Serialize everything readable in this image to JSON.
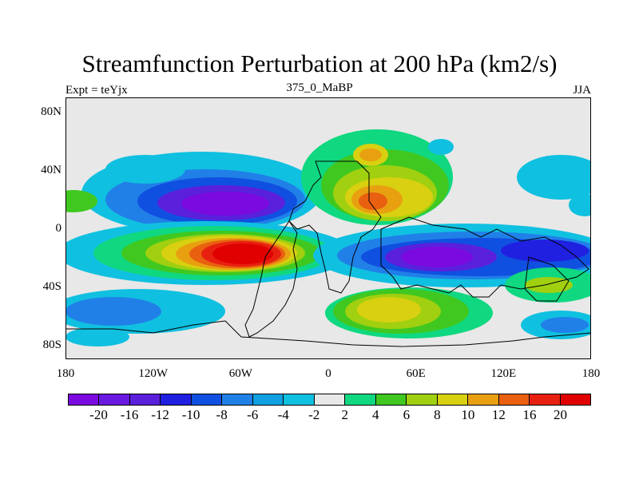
{
  "title": "Streamfunction Perturbation at 200 hPa (km2/s)",
  "subtitle_left": "Expt = teYjx",
  "subtitle_center": "375_0_MaBP",
  "subtitle_right": "JJA",
  "axes": {
    "y_ticks": [
      {
        "label": "80N",
        "lat": 80
      },
      {
        "label": "40N",
        "lat": 40
      },
      {
        "label": "0",
        "lat": 0
      },
      {
        "label": "40S",
        "lat": -40
      },
      {
        "label": "80S",
        "lat": -80
      }
    ],
    "x_ticks": [
      {
        "label": "180",
        "lon": -180
      },
      {
        "label": "120W",
        "lon": -120
      },
      {
        "label": "60W",
        "lon": -60
      },
      {
        "label": "0",
        "lon": 0
      },
      {
        "label": "60E",
        "lon": 60
      },
      {
        "label": "120E",
        "lon": 120
      },
      {
        "label": "180",
        "lon": 180
      }
    ],
    "lon_range": [
      -180,
      180
    ],
    "lat_range": [
      -90,
      90
    ]
  },
  "colorbar": {
    "levels": [
      "-20",
      "-16",
      "-12",
      "-10",
      "-8",
      "-6",
      "-4",
      "-2",
      "2",
      "4",
      "6",
      "8",
      "10",
      "12",
      "16",
      "20"
    ],
    "colors": [
      "#7a0ae0",
      "#6a1ae0",
      "#5a20dc",
      "#2020e0",
      "#1050e0",
      "#2080e8",
      "#10a0e0",
      "#10c0e0",
      "#e8e8e8",
      "#10d880",
      "#40c820",
      "#a0d010",
      "#d8d010",
      "#e8a010",
      "#e86010",
      "#e82010",
      "#e00000"
    ]
  },
  "map_background": "#e8e8e8"
}
